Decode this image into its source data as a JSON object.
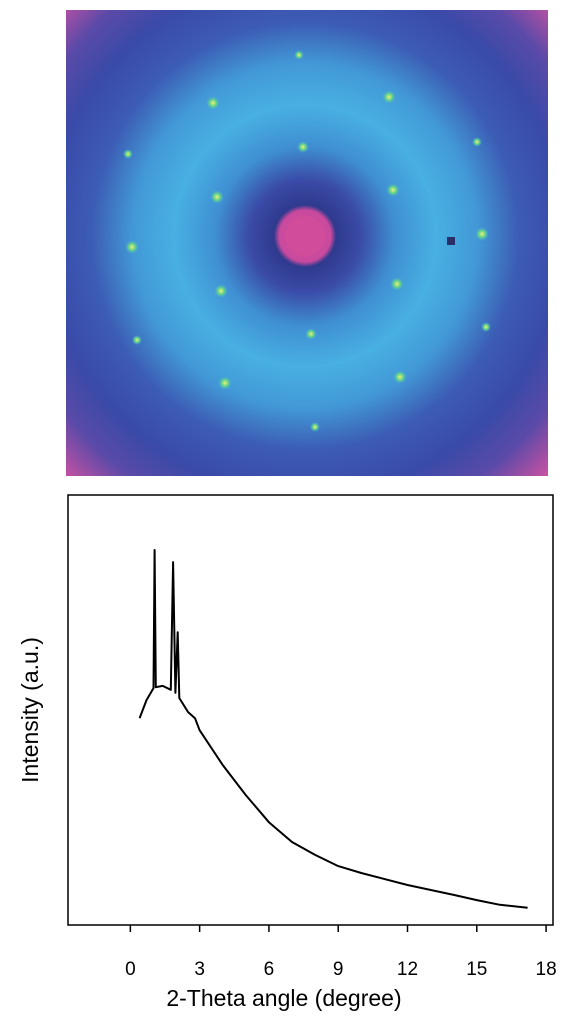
{
  "chart_data": {
    "type": "line",
    "x_label": "2-Theta angle (degree)",
    "y_label": "Intensity (a.u.)",
    "x": [
      0.4,
      0.7,
      1.0,
      1.05,
      1.1,
      1.4,
      1.75,
      1.85,
      1.95,
      2.05,
      2.12,
      2.5,
      2.8,
      3,
      4,
      5,
      6,
      7,
      8,
      9,
      10,
      12,
      14,
      15,
      16,
      17.2
    ],
    "values": [
      48.1,
      52.3,
      55.1,
      87.2,
      55.3,
      55.6,
      54.7,
      84.4,
      54.0,
      68.1,
      52.8,
      49.5,
      48.1,
      45.3,
      37.2,
      30.2,
      23.9,
      19.3,
      16.3,
      13.7,
      12.1,
      9.3,
      7.0,
      5.8,
      4.7,
      4.0
    ],
    "color": "#000000",
    "xlim": [
      -2.7,
      18.3
    ],
    "xticks": [
      0,
      3,
      6,
      9,
      12,
      15,
      18
    ],
    "ylim": [
      0,
      100
    ]
  }
}
